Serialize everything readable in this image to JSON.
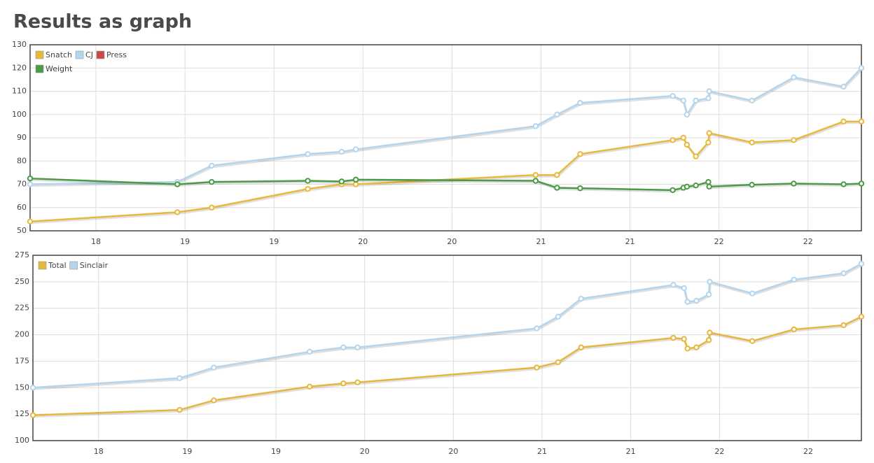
{
  "heading": "Results as graph",
  "chart_data": [
    {
      "type": "line",
      "x": [
        17.63,
        18.457,
        18.65,
        19.19,
        19.38,
        19.46,
        20.47,
        20.59,
        20.72,
        21.24,
        21.3,
        21.32,
        21.37,
        21.44,
        21.445,
        21.685,
        21.92,
        22.2,
        22.3
      ],
      "series": [
        {
          "name": "Snatch",
          "color": "#e8b93a",
          "values": [
            54,
            58,
            60,
            68,
            70,
            70,
            74,
            74,
            83,
            89,
            90,
            87,
            82,
            88,
            92,
            88,
            89,
            97,
            97
          ]
        },
        {
          "name": "CJ",
          "color": "#b4d5ee",
          "values": [
            70,
            71,
            78,
            83,
            84,
            85,
            95,
            100,
            105,
            108,
            106,
            100,
            106,
            107,
            110,
            106,
            116,
            112,
            120
          ]
        },
        {
          "name": "Press",
          "color": "#c94848",
          "values": [
            null,
            null,
            null,
            null,
            null,
            null,
            null,
            null,
            null,
            null,
            null,
            null,
            null,
            null,
            null,
            null,
            null,
            null,
            null
          ]
        },
        {
          "name": "Weight",
          "color": "#4a9a48",
          "values": [
            72.5,
            70,
            71,
            71.5,
            71.2,
            72,
            71.5,
            68.5,
            68.3,
            67.5,
            68.5,
            69,
            69.5,
            71,
            69,
            69.8,
            70.3,
            70,
            70.3
          ]
        }
      ],
      "xlim": [
        17.63,
        22.3
      ],
      "xticks": [
        18,
        {
          "value": 18.5,
          "label": "19"
        },
        19,
        {
          "value": 19.5,
          "label": "20"
        },
        20,
        {
          "value": 20.5,
          "label": "21"
        },
        21,
        {
          "value": 21.5,
          "label": "22"
        },
        22
      ],
      "ylim": [
        50,
        130
      ],
      "yticks": [
        50,
        60,
        70,
        80,
        90,
        100,
        110,
        120,
        130
      ],
      "grid": true,
      "legend": "top-left"
    },
    {
      "type": "line",
      "x": [
        17.63,
        18.457,
        18.65,
        19.19,
        19.38,
        19.46,
        20.47,
        20.59,
        20.72,
        21.24,
        21.3,
        21.32,
        21.37,
        21.44,
        21.445,
        21.685,
        21.92,
        22.2,
        22.3
      ],
      "series": [
        {
          "name": "Total",
          "color": "#e6b73c",
          "values": [
            124,
            129,
            138,
            151,
            154,
            155,
            169,
            174,
            188,
            197,
            196,
            187,
            188,
            195,
            202,
            194,
            205,
            209,
            217
          ]
        },
        {
          "name": "Sinclair",
          "color": "#b4d5ee",
          "values": [
            150,
            159,
            169,
            184,
            188,
            188,
            206,
            217,
            234,
            247,
            244,
            231,
            232,
            238,
            250,
            239,
            252,
            258,
            267
          ]
        }
      ],
      "xlim": [
        17.63,
        22.3
      ],
      "xticks": [
        18,
        {
          "value": 18.5,
          "label": "19"
        },
        19,
        {
          "value": 19.5,
          "label": "20"
        },
        20,
        {
          "value": 20.5,
          "label": "21"
        },
        21,
        {
          "value": 21.5,
          "label": "22"
        },
        22
      ],
      "ylim": [
        100,
        275
      ],
      "yticks": [
        100,
        125,
        150,
        175,
        200,
        225,
        250,
        275
      ],
      "grid": true,
      "legend": "top-left"
    }
  ]
}
